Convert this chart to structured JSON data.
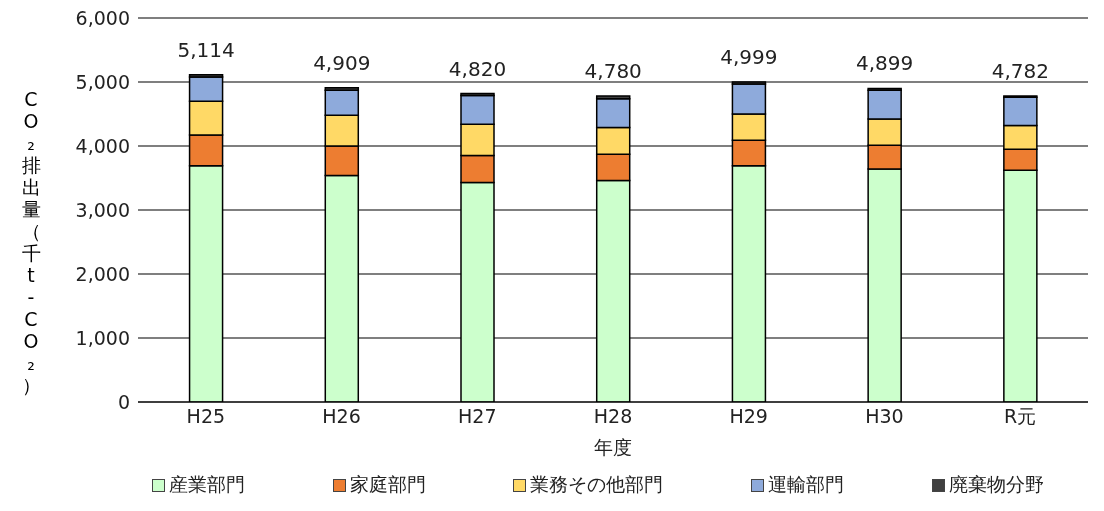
{
  "chart_data": {
    "type": "bar",
    "stacked": true,
    "xlabel": "年度",
    "ylabel": "CO₂排出量（千t-CO₂）",
    "categories": [
      "H25",
      "H26",
      "H27",
      "H28",
      "H29",
      "H30",
      "R元"
    ],
    "series": [
      {
        "name": "産業部門",
        "color": "#ccffcc",
        "values": [
          3690,
          3540,
          3430,
          3460,
          3690,
          3640,
          3620
        ]
      },
      {
        "name": "家庭部門",
        "color": "#ed7d31",
        "values": [
          480,
          460,
          420,
          410,
          400,
          370,
          330
        ]
      },
      {
        "name": "業務その他部門",
        "color": "#ffd966",
        "values": [
          530,
          480,
          490,
          420,
          410,
          410,
          370
        ]
      },
      {
        "name": "運輸部門",
        "color": "#8eaadb",
        "values": [
          380,
          390,
          450,
          450,
          470,
          450,
          440
        ]
      },
      {
        "name": "廃棄物分野",
        "color": "#404040",
        "values": [
          34,
          39,
          30,
          40,
          29,
          29,
          22
        ]
      }
    ],
    "totals": [
      "5,114",
      "4,909",
      "4,820",
      "4,780",
      "4,999",
      "4,899",
      "4,782"
    ],
    "ylim": [
      0,
      6000
    ],
    "yticks": [
      {
        "value": 0,
        "label": "0"
      },
      {
        "value": 1000,
        "label": "1,000"
      },
      {
        "value": 2000,
        "label": "2,000"
      },
      {
        "value": 3000,
        "label": "3,000"
      },
      {
        "value": 4000,
        "label": "4,000"
      },
      {
        "value": 5000,
        "label": "5,000"
      },
      {
        "value": 6000,
        "label": "6,000"
      }
    ],
    "grid": "y",
    "legend": "bottom"
  }
}
